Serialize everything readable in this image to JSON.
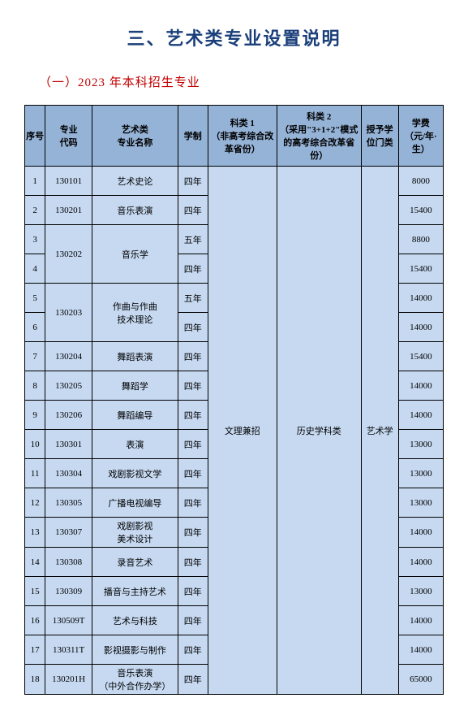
{
  "title": "三、艺术类专业设置说明",
  "subtitle": "（一）2023 年本科招生专业",
  "headers": {
    "idx": "序号",
    "code": "专业\n代码",
    "name": "艺术类\n专业名称",
    "duration": "学制",
    "k1": "科类 1\n（非高考综合改革省份）",
    "k2": "科类 2\n（采用\"3+1+2\"模式的高考综合改革省份）",
    "degree": "授予学位门类",
    "fee": "学费\n（元/年·生）"
  },
  "merged": {
    "k1": "文理兼招",
    "k2": "历史学科类",
    "degree": "艺术学"
  },
  "rows": [
    {
      "idx": "1",
      "code": "130101",
      "name": "艺术史论",
      "dur": "四年",
      "fee": "8000"
    },
    {
      "idx": "2",
      "code": "130201",
      "name": "音乐表演",
      "dur": "四年",
      "fee": "15400"
    },
    {
      "idx": "3",
      "code_merge": "130202",
      "name_merge": "音乐学",
      "dur": "五年",
      "fee": "8800"
    },
    {
      "idx": "4",
      "dur": "四年",
      "fee": "15400"
    },
    {
      "idx": "5",
      "code_merge": "130203",
      "name_merge": "作曲与作曲\n技术理论",
      "dur": "五年",
      "fee": "14000"
    },
    {
      "idx": "6",
      "dur": "四年",
      "fee": "14000"
    },
    {
      "idx": "7",
      "code": "130204",
      "name": "舞蹈表演",
      "dur": "四年",
      "fee": "15400"
    },
    {
      "idx": "8",
      "code": "130205",
      "name": "舞蹈学",
      "dur": "四年",
      "fee": "14000"
    },
    {
      "idx": "9",
      "code": "130206",
      "name": "舞蹈编导",
      "dur": "四年",
      "fee": "14000"
    },
    {
      "idx": "10",
      "code": "130301",
      "name": "表演",
      "dur": "四年",
      "fee": "13000"
    },
    {
      "idx": "11",
      "code": "130304",
      "name": "戏剧影视文学",
      "dur": "四年",
      "fee": "13000"
    },
    {
      "idx": "12",
      "code": "130305",
      "name": "广播电视编导",
      "dur": "四年",
      "fee": "13000"
    },
    {
      "idx": "13",
      "code": "130307",
      "name": "戏剧影视\n美术设计",
      "dur": "四年",
      "fee": "14000"
    },
    {
      "idx": "14",
      "code": "130308",
      "name": "录音艺术",
      "dur": "四年",
      "fee": "14000"
    },
    {
      "idx": "15",
      "code": "130309",
      "name": "播音与主持艺术",
      "dur": "四年",
      "fee": "13000"
    },
    {
      "idx": "16",
      "code": "130509T",
      "name": "艺术与科技",
      "dur": "四年",
      "fee": "14000"
    },
    {
      "idx": "17",
      "code": "130311T",
      "name": "影视摄影与制作",
      "dur": "四年",
      "fee": "14000"
    },
    {
      "idx": "18",
      "code": "130201H",
      "name": "音乐表演\n（中外合作办学）",
      "dur": "四年",
      "fee": "65000"
    }
  ]
}
